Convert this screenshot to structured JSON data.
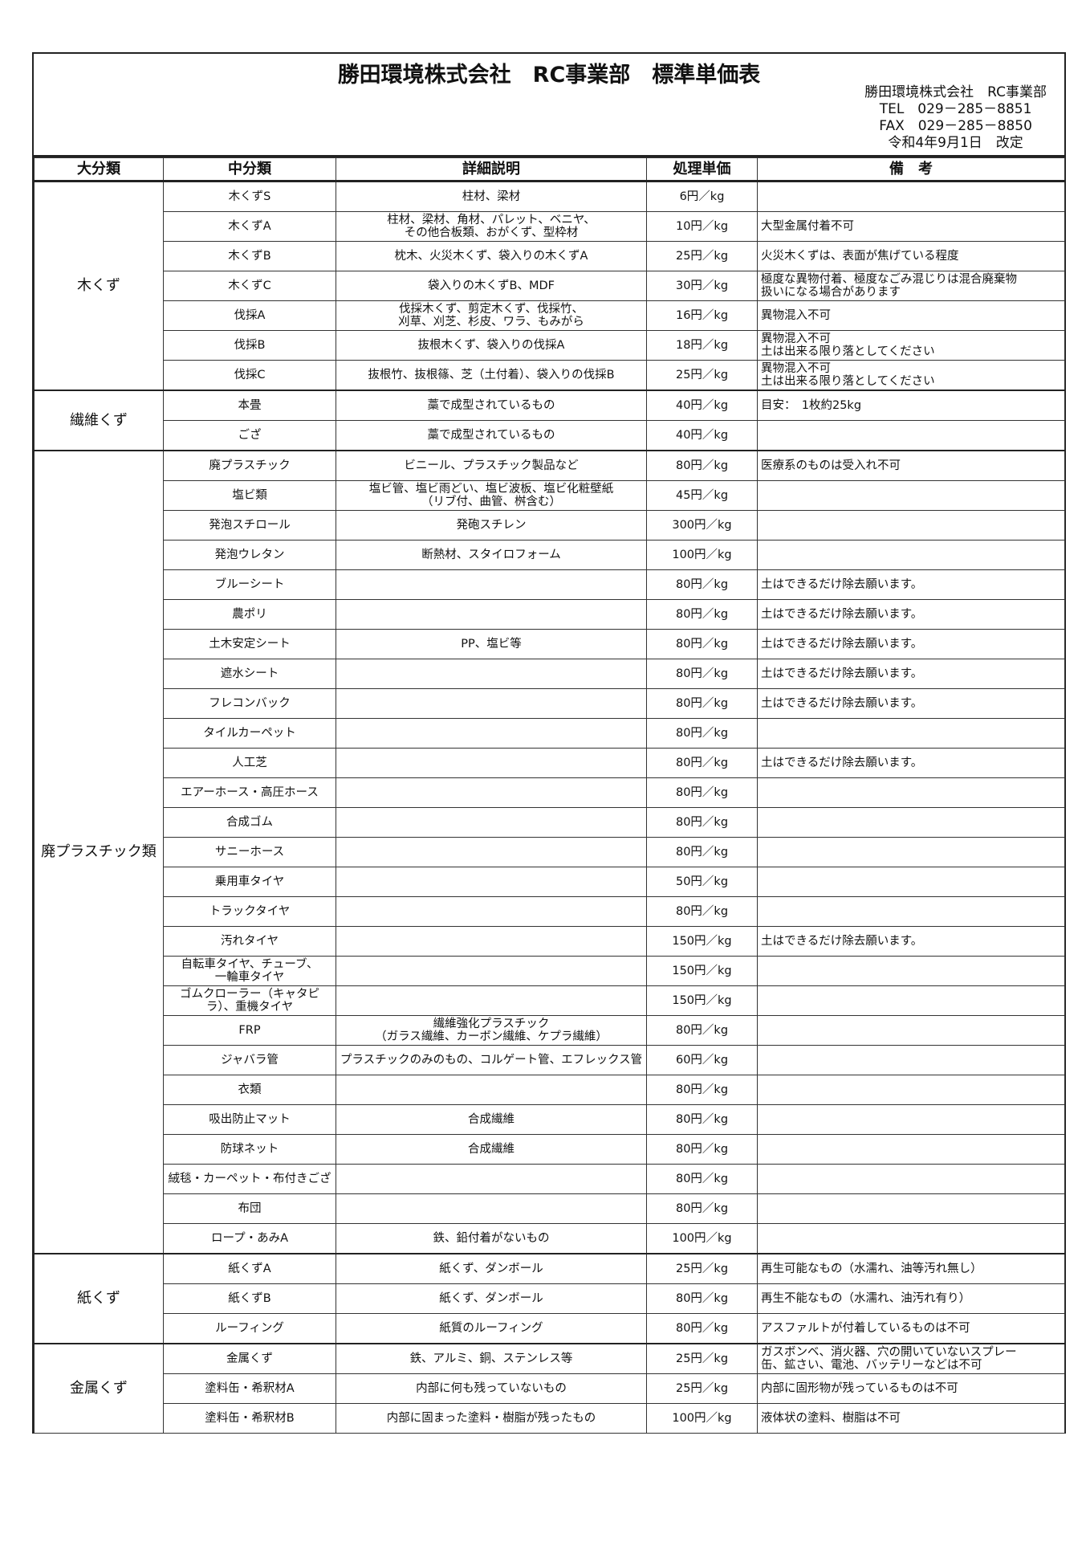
{
  "title": "勝田環境株式会社　RC事業部　標準単価表",
  "contact": {
    "company": "勝田環境株式会社　RC事業部",
    "tel": "TEL　029－285－8851",
    "fax": "FAX　029－285－8850",
    "revised": "令和4年9月1日　改定"
  },
  "columns": [
    "大分類",
    "中分類",
    "詳細説明",
    "処理単価",
    "備　考"
  ],
  "categories": [
    {
      "name": "木くず",
      "items": [
        {
          "sub": "木くずS",
          "detail": "柱材、梁材",
          "price": "6円／kg",
          "note": ""
        },
        {
          "sub": "木くずA",
          "detail": "柱材、梁材、角材、パレット、ベニヤ、\nその他合板類、おがくず、型枠材",
          "price": "10円／kg",
          "note": "大型金属付着不可"
        },
        {
          "sub": "木くずB",
          "detail": "枕木、火災木くず、袋入りの木くずA",
          "price": "25円／kg",
          "note": "火災木くずは、表面が焦げている程度"
        },
        {
          "sub": "木くずC",
          "detail": "袋入りの木くずB、MDF",
          "price": "30円／kg",
          "note": "極度な異物付着、極度なごみ混じりは混合廃棄物\n扱いになる場合があります"
        },
        {
          "sub": "伐採A",
          "detail": "伐採木くず、剪定木くず、伐採竹、\n刈草、刈芝、杉皮、ワラ、もみがら",
          "price": "16円／kg",
          "note": "異物混入不可"
        },
        {
          "sub": "伐採B",
          "detail": "抜根木くず、袋入りの伐採A",
          "price": "18円／kg",
          "note": "異物混入不可\n土は出来る限り落としてください"
        },
        {
          "sub": "伐採C",
          "detail": "抜根竹、抜根篠、芝（土付着）、袋入りの伐採B",
          "price": "25円／kg",
          "note": "異物混入不可\n土は出来る限り落としてください"
        }
      ]
    },
    {
      "name": "繊維くず",
      "items": [
        {
          "sub": "本畳",
          "detail": "藁で成型されているもの",
          "price": "40円／kg",
          "note": "目安：　1枚約25kg"
        },
        {
          "sub": "ござ",
          "detail": "藁で成型されているもの",
          "price": "40円／kg",
          "note": ""
        }
      ]
    },
    {
      "name": "廃プラスチック類",
      "items": [
        {
          "sub": "廃プラスチック",
          "detail": "ビニール、プラスチック製品など",
          "price": "80円／kg",
          "note": "医療系のものは受入れ不可"
        },
        {
          "sub": "塩ビ類",
          "detail": "塩ビ管、塩ビ雨どい、塩ビ波板、塩ビ化粧壁紙\n（リブ付、曲管、桝含む）",
          "price": "45円／kg",
          "note": ""
        },
        {
          "sub": "発泡スチロール",
          "detail": "発砲スチレン",
          "price": "300円／kg",
          "note": ""
        },
        {
          "sub": "発泡ウレタン",
          "detail": "断熱材、スタイロフォーム",
          "price": "100円／kg",
          "note": ""
        },
        {
          "sub": "ブルーシート",
          "detail": "",
          "price": "80円／kg",
          "note": "土はできるだけ除去願います。"
        },
        {
          "sub": "農ポリ",
          "detail": "",
          "price": "80円／kg",
          "note": "土はできるだけ除去願います。"
        },
        {
          "sub": "土木安定シート",
          "detail": "PP、塩ビ等",
          "price": "80円／kg",
          "note": "土はできるだけ除去願います。"
        },
        {
          "sub": "遮水シート",
          "detail": "",
          "price": "80円／kg",
          "note": "土はできるだけ除去願います。"
        },
        {
          "sub": "フレコンバック",
          "detail": "",
          "price": "80円／kg",
          "note": "土はできるだけ除去願います。"
        },
        {
          "sub": "タイルカーペット",
          "detail": "",
          "price": "80円／kg",
          "note": ""
        },
        {
          "sub": "人工芝",
          "detail": "",
          "price": "80円／kg",
          "note": "土はできるだけ除去願います。"
        },
        {
          "sub": "エアーホース・高圧ホース",
          "detail": "",
          "price": "80円／kg",
          "note": ""
        },
        {
          "sub": "合成ゴム",
          "detail": "",
          "price": "80円／kg",
          "note": ""
        },
        {
          "sub": "サニーホース",
          "detail": "",
          "price": "80円／kg",
          "note": ""
        },
        {
          "sub": "乗用車タイヤ",
          "detail": "",
          "price": "50円／kg",
          "note": ""
        },
        {
          "sub": "トラックタイヤ",
          "detail": "",
          "price": "80円／kg",
          "note": ""
        },
        {
          "sub": "汚れタイヤ",
          "detail": "",
          "price": "150円／kg",
          "note": "土はできるだけ除去願います。"
        },
        {
          "sub": "自転車タイヤ、チューブ、\n一輪車タイヤ",
          "detail": "",
          "price": "150円／kg",
          "note": ""
        },
        {
          "sub": "ゴムクローラー（キャタピ\nラ）、重機タイヤ",
          "detail": "",
          "price": "150円／kg",
          "note": ""
        },
        {
          "sub": "FRP",
          "detail": "繊維強化プラスチック\n（ガラス繊維、カーボン繊維、ケプラ繊維）",
          "price": "80円／kg",
          "note": ""
        },
        {
          "sub": "ジャバラ管",
          "detail": "プラスチックのみのもの、コルゲート管、エフレックス管",
          "price": "60円／kg",
          "note": ""
        },
        {
          "sub": "衣類",
          "detail": "",
          "price": "80円／kg",
          "note": ""
        },
        {
          "sub": "吸出防止マット",
          "detail": "合成繊維",
          "price": "80円／kg",
          "note": ""
        },
        {
          "sub": "防球ネット",
          "detail": "合成繊維",
          "price": "80円／kg",
          "note": ""
        },
        {
          "sub": "絨毯・カーペット・布付きござ",
          "detail": "",
          "price": "80円／kg",
          "note": ""
        },
        {
          "sub": "布団",
          "detail": "",
          "price": "80円／kg",
          "note": ""
        },
        {
          "sub": "ロープ・あみA",
          "detail": "鉄、鉛付着がないもの",
          "price": "100円／kg",
          "note": ""
        }
      ]
    },
    {
      "name": "紙くず",
      "items": [
        {
          "sub": "紙くずA",
          "detail": "紙くず、ダンボール",
          "price": "25円／kg",
          "note": "再生可能なもの（水濡れ、油等汚れ無し）"
        },
        {
          "sub": "紙くずB",
          "detail": "紙くず、ダンボール",
          "price": "80円／kg",
          "note": "再生不能なもの（水濡れ、油汚れ有り）"
        },
        {
          "sub": "ルーフィング",
          "detail": "紙質のルーフィング",
          "price": "80円／kg",
          "note": "アスファルトが付着しているものは不可"
        }
      ]
    },
    {
      "name": "金属くず",
      "items": [
        {
          "sub": "金属くず",
          "detail": "鉄、アルミ、銅、ステンレス等",
          "price": "25円／kg",
          "note": "ガスボンベ、消火器、穴の開いていないスプレー\n缶、鉱さい、電池、バッテリーなどは不可"
        },
        {
          "sub": "塗料缶・希釈材A",
          "detail": "内部に何も残っていないもの",
          "price": "25円／kg",
          "note": "内部に固形物が残っているものは不可"
        },
        {
          "sub": "塗料缶・希釈材B",
          "detail": "内部に固まった塗料・樹脂が残ったもの",
          "price": "100円／kg",
          "note": "液体状の塗料、樹脂は不可"
        }
      ]
    }
  ]
}
